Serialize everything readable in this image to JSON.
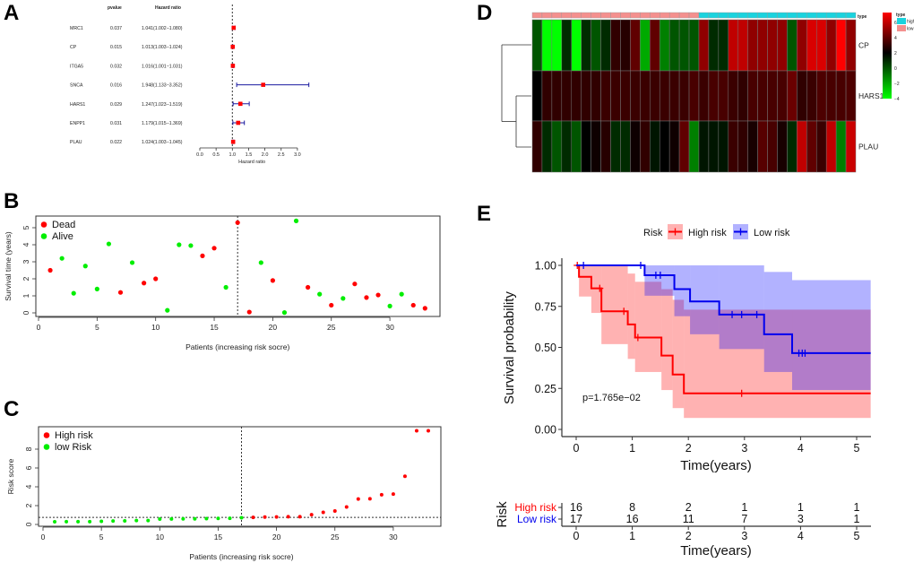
{
  "panel_labels": [
    "A",
    "B",
    "C",
    "D",
    "E"
  ],
  "chart_data": [
    {
      "panel": "A",
      "type": "forest",
      "columns": {
        "pvalue": "pvalue",
        "hazard": "Hazard ratio"
      },
      "genes": [
        "MRC1",
        "CP",
        "ITGA5",
        "SNCA",
        "HARS1",
        "ENPP1",
        "PLAU"
      ],
      "pvalues": [
        "0.037",
        "0.015",
        "0.032",
        "0.016",
        "0.029",
        "0.031",
        "0.022"
      ],
      "hr_text": [
        "1.041(1.002−1.080)",
        "1.013(1.003−1.024)",
        "1.016(1.001−1.031)",
        "1.948(1.133−3.352)",
        "1.247(1.023−1.519)",
        "1.179(1.015−1.369)",
        "1.024(1.003−1.045)"
      ],
      "hr": [
        1.041,
        1.013,
        1.016,
        1.948,
        1.247,
        1.179,
        1.024
      ],
      "lower": [
        1.002,
        1.003,
        1.001,
        1.133,
        1.023,
        1.015,
        1.003
      ],
      "upper": [
        1.08,
        1.024,
        1.031,
        3.352,
        1.519,
        1.369,
        1.045
      ],
      "xlabel": "Hazard ratio",
      "xticks": [
        "0.0",
        "0.5",
        "1.0",
        "1.5",
        "2.0",
        "2.5",
        "3.0"
      ],
      "xlim": [
        0,
        3
      ],
      "reference_line": 1,
      "point_color": "#ff0000",
      "ci_color": "#1a1aa0"
    },
    {
      "panel": "B",
      "type": "scatter",
      "xlabel": "Patients (increasing risk socre)",
      "ylabel": "Survival time (years)",
      "xticks": [
        "0",
        "5",
        "10",
        "15",
        "20",
        "25",
        "30"
      ],
      "yticks": [
        "0",
        "1",
        "2",
        "3",
        "4",
        "5"
      ],
      "xlim": [
        0,
        34
      ],
      "ylim": [
        0,
        5.5
      ],
      "cutoff_patient": 17,
      "legend": [
        {
          "label": "Dead",
          "color": "#ff0000"
        },
        {
          "label": "Alive",
          "color": "#00ee00"
        }
      ],
      "legend_position": "top-left",
      "survival_time": [
        2.5,
        3.2,
        1.15,
        2.75,
        1.4,
        4.05,
        1.2,
        2.95,
        1.75,
        2.0,
        0.15,
        4.0,
        3.95,
        3.35,
        3.8,
        1.5,
        5.3,
        0.05,
        2.95,
        1.9,
        0.02,
        5.4,
        1.5,
        1.1,
        0.45,
        0.85,
        1.7,
        0.9,
        1.05,
        0.4,
        1.1,
        0.45,
        0.27
      ],
      "status": [
        "Dead",
        "Alive",
        "Alive",
        "Alive",
        "Alive",
        "Alive",
        "Dead",
        "Alive",
        "Dead",
        "Dead",
        "Alive",
        "Alive",
        "Alive",
        "Dead",
        "Dead",
        "Alive",
        "Dead",
        "Dead",
        "Alive",
        "Dead",
        "Alive",
        "Alive",
        "Dead",
        "Alive",
        "Dead",
        "Alive",
        "Dead",
        "Dead",
        "Dead",
        "Alive",
        "Alive",
        "Dead",
        "Dead"
      ]
    },
    {
      "panel": "C",
      "type": "scatter",
      "xlabel": "Patients (increasing risk socre)",
      "ylabel": "Risk score",
      "xticks": [
        "0",
        "5",
        "10",
        "15",
        "20",
        "25",
        "30"
      ],
      "yticks": [
        "0",
        "2",
        "4",
        "6",
        "8"
      ],
      "xlim": [
        0,
        34
      ],
      "ylim": [
        0,
        10.2
      ],
      "cutoff_patient": 17,
      "cutoff_score": 0.75,
      "legend": [
        {
          "label": "High risk",
          "color": "#ff0000"
        },
        {
          "label": "low Risk",
          "color": "#00ee00"
        }
      ],
      "legend_position": "top-left",
      "risk_score": [
        0.28,
        0.3,
        0.3,
        0.3,
        0.33,
        0.37,
        0.38,
        0.42,
        0.42,
        0.57,
        0.58,
        0.6,
        0.6,
        0.62,
        0.64,
        0.65,
        0.72,
        0.75,
        0.78,
        0.8,
        0.82,
        0.82,
        1.03,
        1.28,
        1.43,
        1.86,
        2.7,
        2.73,
        3.16,
        3.23,
        5.12,
        9.95,
        9.95
      ],
      "low_risk_count": 17
    },
    {
      "panel": "D",
      "type": "heatmap",
      "rows": [
        "CP",
        "HARS1",
        "PLAU"
      ],
      "annotation_label": "type",
      "annotation": {
        "low_count": 17,
        "high_count": 16
      },
      "legend_title": "type",
      "legend": [
        {
          "label": "high",
          "color": "#1ad3de"
        },
        {
          "label": "low",
          "color": "#f4908e"
        }
      ],
      "colorbar_ticks": [
        "6",
        "4",
        "2",
        "0",
        "−2",
        "−4"
      ],
      "colorbar_values": [
        6,
        4,
        2,
        0,
        -2,
        -4
      ],
      "color_scale": {
        "low": "#00ff00",
        "mid": "#000000",
        "high": "#ff0000",
        "min": -4,
        "mid_value": 2,
        "max": 7.3
      },
      "values": [
        [
          0,
          -4,
          -4,
          1,
          -4,
          1,
          0,
          1,
          3,
          2.8,
          4,
          -2,
          4,
          -1,
          0,
          0,
          0,
          5,
          1,
          1,
          6,
          6,
          5,
          5,
          5,
          5,
          0,
          5,
          6.5,
          6.5,
          5,
          7.3,
          5
        ],
        [
          2,
          3,
          3,
          3,
          3,
          3,
          3,
          3.2,
          3.2,
          3.2,
          3.2,
          3.2,
          3.2,
          3.2,
          3.2,
          3.2,
          3.5,
          3.2,
          3.5,
          3.5,
          3.2,
          3,
          3.5,
          3.5,
          3.5,
          3.5,
          4.2,
          3,
          3.2,
          3.6,
          3.5,
          3.5,
          3.6
        ],
        [
          3,
          1,
          0,
          1,
          0,
          2,
          2.3,
          2.8,
          1,
          1,
          2.3,
          3,
          1.5,
          2,
          2.3,
          4,
          -1,
          1.5,
          1.5,
          1.5,
          3.2,
          3,
          2.5,
          3.8,
          3.5,
          2.5,
          1,
          6,
          4,
          3.2,
          6,
          -1,
          6.2
        ]
      ]
    },
    {
      "panel": "E",
      "type": "line",
      "legend_title": "Risk",
      "legend_position": "top",
      "series": [
        {
          "name": "High risk",
          "color": "#ff0000",
          "band_color": "rgba(255,0,0,0.3)",
          "steps": [
            [
              0,
              1.0
            ],
            [
              0.05,
              0.93
            ],
            [
              0.27,
              0.86
            ],
            [
              0.45,
              0.72
            ],
            [
              0.92,
              0.64
            ],
            [
              1.05,
              0.56
            ],
            [
              1.52,
              0.45
            ],
            [
              1.72,
              0.335
            ],
            [
              1.92,
              0.22
            ]
          ],
          "ci": [
            [
              0.05,
              0.27,
              0.81,
              1.0
            ],
            [
              0.27,
              0.45,
              0.71,
              1.0
            ],
            [
              0.45,
              0.92,
              0.52,
              1.0
            ],
            [
              0.92,
              1.05,
              0.43,
              0.95
            ],
            [
              1.05,
              1.52,
              0.35,
              0.9
            ],
            [
              1.52,
              1.72,
              0.24,
              0.855
            ],
            [
              1.72,
              1.92,
              0.13,
              0.79
            ],
            [
              1.92,
              5.25,
              0.07,
              0.73
            ]
          ],
          "censored": [
            [
              0.02,
              1.0
            ],
            [
              0.42,
              0.86
            ],
            [
              0.85,
              0.72
            ],
            [
              1.1,
              0.56
            ],
            [
              2.95,
              0.22
            ]
          ]
        },
        {
          "name": "Low risk",
          "color": "#0000ee",
          "band_color": "rgba(0,0,255,0.3)",
          "steps": [
            [
              0,
              1.0
            ],
            [
              1.22,
              0.94
            ],
            [
              1.75,
              0.855
            ],
            [
              2.03,
              0.78
            ],
            [
              2.55,
              0.7
            ],
            [
              3.35,
              0.58
            ],
            [
              3.85,
              0.465
            ]
          ],
          "ci": [
            [
              1.22,
              1.75,
              0.815,
              1.0
            ],
            [
              1.75,
              2.03,
              0.69,
              1.0
            ],
            [
              2.03,
              2.55,
              0.58,
              1.0
            ],
            [
              2.55,
              3.35,
              0.49,
              1.0
            ],
            [
              3.35,
              3.85,
              0.35,
              0.96
            ],
            [
              3.85,
              5.25,
              0.24,
              0.91
            ]
          ],
          "censored": [
            [
              0.13,
              1.0
            ],
            [
              1.15,
              1.0
            ],
            [
              1.42,
              0.94
            ],
            [
              1.5,
              0.94
            ],
            [
              2.78,
              0.7
            ],
            [
              2.95,
              0.7
            ],
            [
              3.22,
              0.7
            ],
            [
              3.97,
              0.465
            ],
            [
              4.03,
              0.465
            ],
            [
              4.08,
              0.465
            ]
          ]
        }
      ],
      "xlabel": "Time(years)",
      "ylabel": "Survival probability",
      "xticks": [
        "0",
        "1",
        "2",
        "3",
        "4",
        "5"
      ],
      "yticks": [
        "0.00",
        "0.25",
        "0.50",
        "0.75",
        "1.00"
      ],
      "xlim": [
        0,
        5.25
      ],
      "ylim": [
        0,
        1
      ],
      "pvalue_text": "p=1.765e−02",
      "risk_table": {
        "title": "Risk",
        "rows": [
          {
            "label": "High risk",
            "color": "#ff0000",
            "counts": [
              "16",
              "8",
              "2",
              "1",
              "1",
              "1"
            ]
          },
          {
            "label": "Low risk",
            "color": "#0000ee",
            "counts": [
              "17",
              "16",
              "11",
              "7",
              "3",
              "1"
            ]
          }
        ],
        "xticks": [
          "0",
          "1",
          "2",
          "3",
          "4",
          "5"
        ],
        "xlabel": "Time(years)"
      }
    }
  ]
}
